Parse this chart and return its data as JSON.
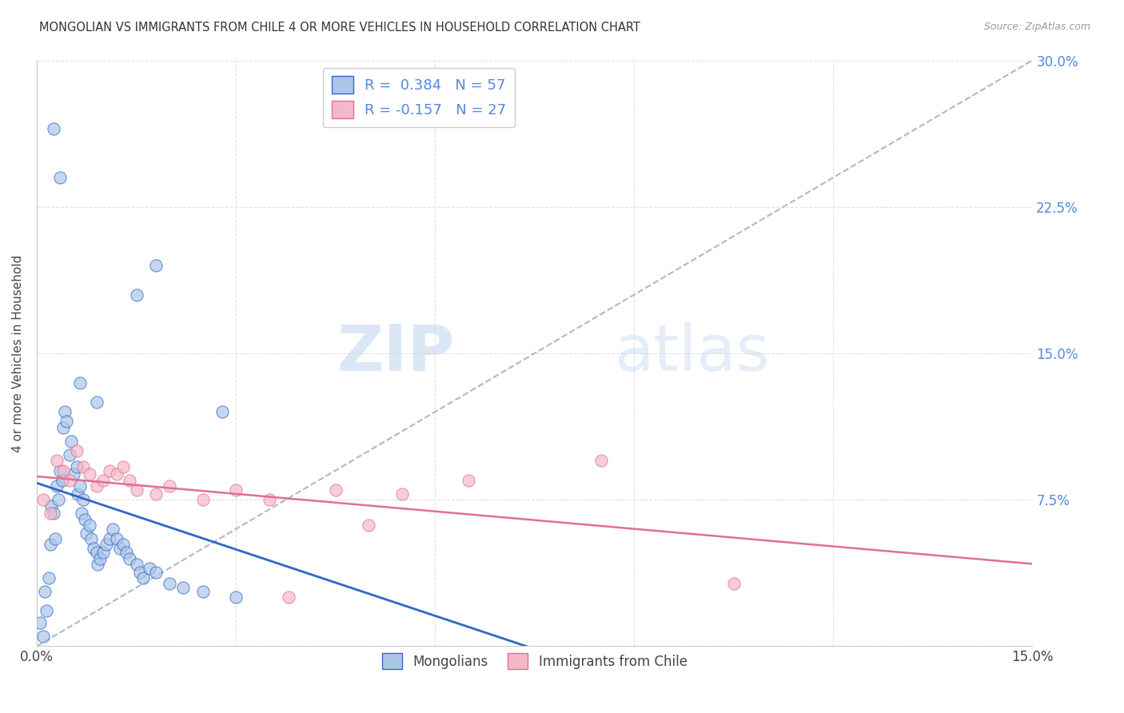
{
  "title": "MONGOLIAN VS IMMIGRANTS FROM CHILE 4 OR MORE VEHICLES IN HOUSEHOLD CORRELATION CHART",
  "source": "Source: ZipAtlas.com",
  "ylabel": "4 or more Vehicles in Household",
  "xlim": [
    0.0,
    15.0
  ],
  "ylim": [
    0.0,
    30.0
  ],
  "yticks_right": [
    7.5,
    15.0,
    22.5,
    30.0
  ],
  "xtick_labels_only_ends": true,
  "mongolian_color": "#adc6e8",
  "chile_color": "#f5b8c8",
  "mongolian_R": 0.384,
  "mongolian_N": 57,
  "chile_R": -0.157,
  "chile_N": 27,
  "mongolian_scatter": [
    [
      0.05,
      1.2
    ],
    [
      0.1,
      0.5
    ],
    [
      0.12,
      2.8
    ],
    [
      0.15,
      1.8
    ],
    [
      0.18,
      3.5
    ],
    [
      0.2,
      5.2
    ],
    [
      0.22,
      7.2
    ],
    [
      0.25,
      6.8
    ],
    [
      0.28,
      5.5
    ],
    [
      0.3,
      8.2
    ],
    [
      0.32,
      7.5
    ],
    [
      0.35,
      9.0
    ],
    [
      0.38,
      8.5
    ],
    [
      0.4,
      11.2
    ],
    [
      0.42,
      12.0
    ],
    [
      0.45,
      11.5
    ],
    [
      0.5,
      9.8
    ],
    [
      0.52,
      10.5
    ],
    [
      0.55,
      8.8
    ],
    [
      0.6,
      9.2
    ],
    [
      0.62,
      7.8
    ],
    [
      0.65,
      8.2
    ],
    [
      0.68,
      6.8
    ],
    [
      0.7,
      7.5
    ],
    [
      0.72,
      6.5
    ],
    [
      0.75,
      5.8
    ],
    [
      0.8,
      6.2
    ],
    [
      0.82,
      5.5
    ],
    [
      0.85,
      5.0
    ],
    [
      0.9,
      4.8
    ],
    [
      0.92,
      4.2
    ],
    [
      0.95,
      4.5
    ],
    [
      1.0,
      4.8
    ],
    [
      1.05,
      5.2
    ],
    [
      1.1,
      5.5
    ],
    [
      1.15,
      6.0
    ],
    [
      1.2,
      5.5
    ],
    [
      1.25,
      5.0
    ],
    [
      1.3,
      5.2
    ],
    [
      1.35,
      4.8
    ],
    [
      1.4,
      4.5
    ],
    [
      1.5,
      4.2
    ],
    [
      1.55,
      3.8
    ],
    [
      1.6,
      3.5
    ],
    [
      1.7,
      4.0
    ],
    [
      1.8,
      3.8
    ],
    [
      2.0,
      3.2
    ],
    [
      2.2,
      3.0
    ],
    [
      2.5,
      2.8
    ],
    [
      3.0,
      2.5
    ],
    [
      0.25,
      26.5
    ],
    [
      0.35,
      24.0
    ],
    [
      1.8,
      19.5
    ],
    [
      1.5,
      18.0
    ],
    [
      0.65,
      13.5
    ],
    [
      0.9,
      12.5
    ],
    [
      2.8,
      12.0
    ]
  ],
  "chile_scatter": [
    [
      0.1,
      7.5
    ],
    [
      0.2,
      6.8
    ],
    [
      0.3,
      9.5
    ],
    [
      0.4,
      9.0
    ],
    [
      0.5,
      8.5
    ],
    [
      0.6,
      10.0
    ],
    [
      0.7,
      9.2
    ],
    [
      0.8,
      8.8
    ],
    [
      0.9,
      8.2
    ],
    [
      1.0,
      8.5
    ],
    [
      1.1,
      9.0
    ],
    [
      1.2,
      8.8
    ],
    [
      1.3,
      9.2
    ],
    [
      1.4,
      8.5
    ],
    [
      1.5,
      8.0
    ],
    [
      1.8,
      7.8
    ],
    [
      2.0,
      8.2
    ],
    [
      2.5,
      7.5
    ],
    [
      3.0,
      8.0
    ],
    [
      3.5,
      7.5
    ],
    [
      4.5,
      8.0
    ],
    [
      5.0,
      6.2
    ],
    [
      5.5,
      7.8
    ],
    [
      6.5,
      8.5
    ],
    [
      8.5,
      9.5
    ],
    [
      10.5,
      3.2
    ],
    [
      3.8,
      2.5
    ]
  ],
  "background_color": "#ffffff",
  "grid_color": "#e0e0e0",
  "trendline_mongol_color": "#3366cc",
  "trendline_chile_color": "#e07090",
  "watermark_zip": "ZIP",
  "watermark_atlas": "atlas",
  "legend_mongolians": "Mongolians",
  "legend_chile": "Immigrants from Chile",
  "right_axis_color": "#5588dd"
}
